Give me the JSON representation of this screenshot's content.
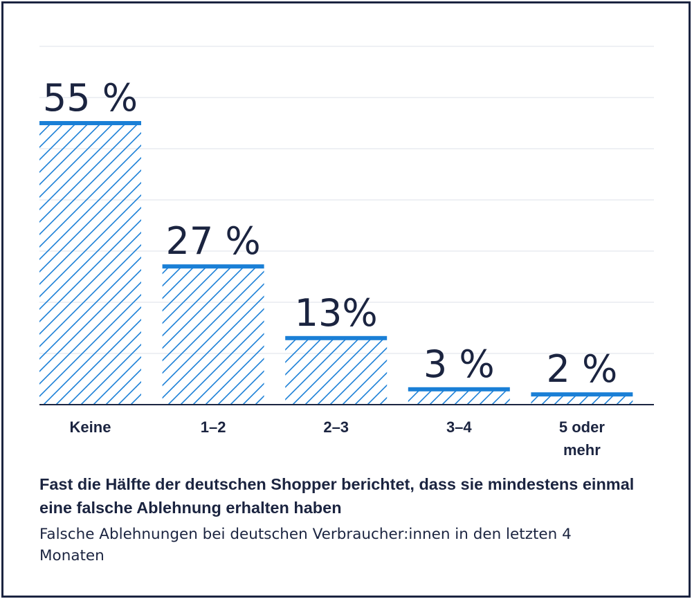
{
  "chart_data": {
    "type": "bar",
    "categories": [
      "Keine",
      "1–2",
      "2–3",
      "3–4",
      "5 oder mehr"
    ],
    "category_lines": [
      [
        "Keine"
      ],
      [
        "1–2"
      ],
      [
        "2–3"
      ],
      [
        "3–4"
      ],
      [
        "5 oder",
        "mehr"
      ]
    ],
    "values": [
      55,
      27,
      13,
      3,
      2
    ],
    "value_labels": [
      "55 %",
      "27 %",
      "13%",
      "3 %",
      "2 %"
    ],
    "ylim": [
      0,
      70
    ],
    "grid": true,
    "legend": "none",
    "colors": {
      "bar_top": "#1a7fd6",
      "hatch": "#1a7fd6",
      "axis": "#1b2440",
      "grid": "#e4e7ee",
      "text": "#1b2440"
    }
  },
  "caption": {
    "title": "Fast die Hälfte der deutschen Shopper berichtet, dass sie mindestens einmal eine falsche Ablehnung erhalten haben",
    "subtitle": "Falsche Ablehnungen bei deutschen Verbraucher:innen in den letzten 4 Monaten"
  }
}
